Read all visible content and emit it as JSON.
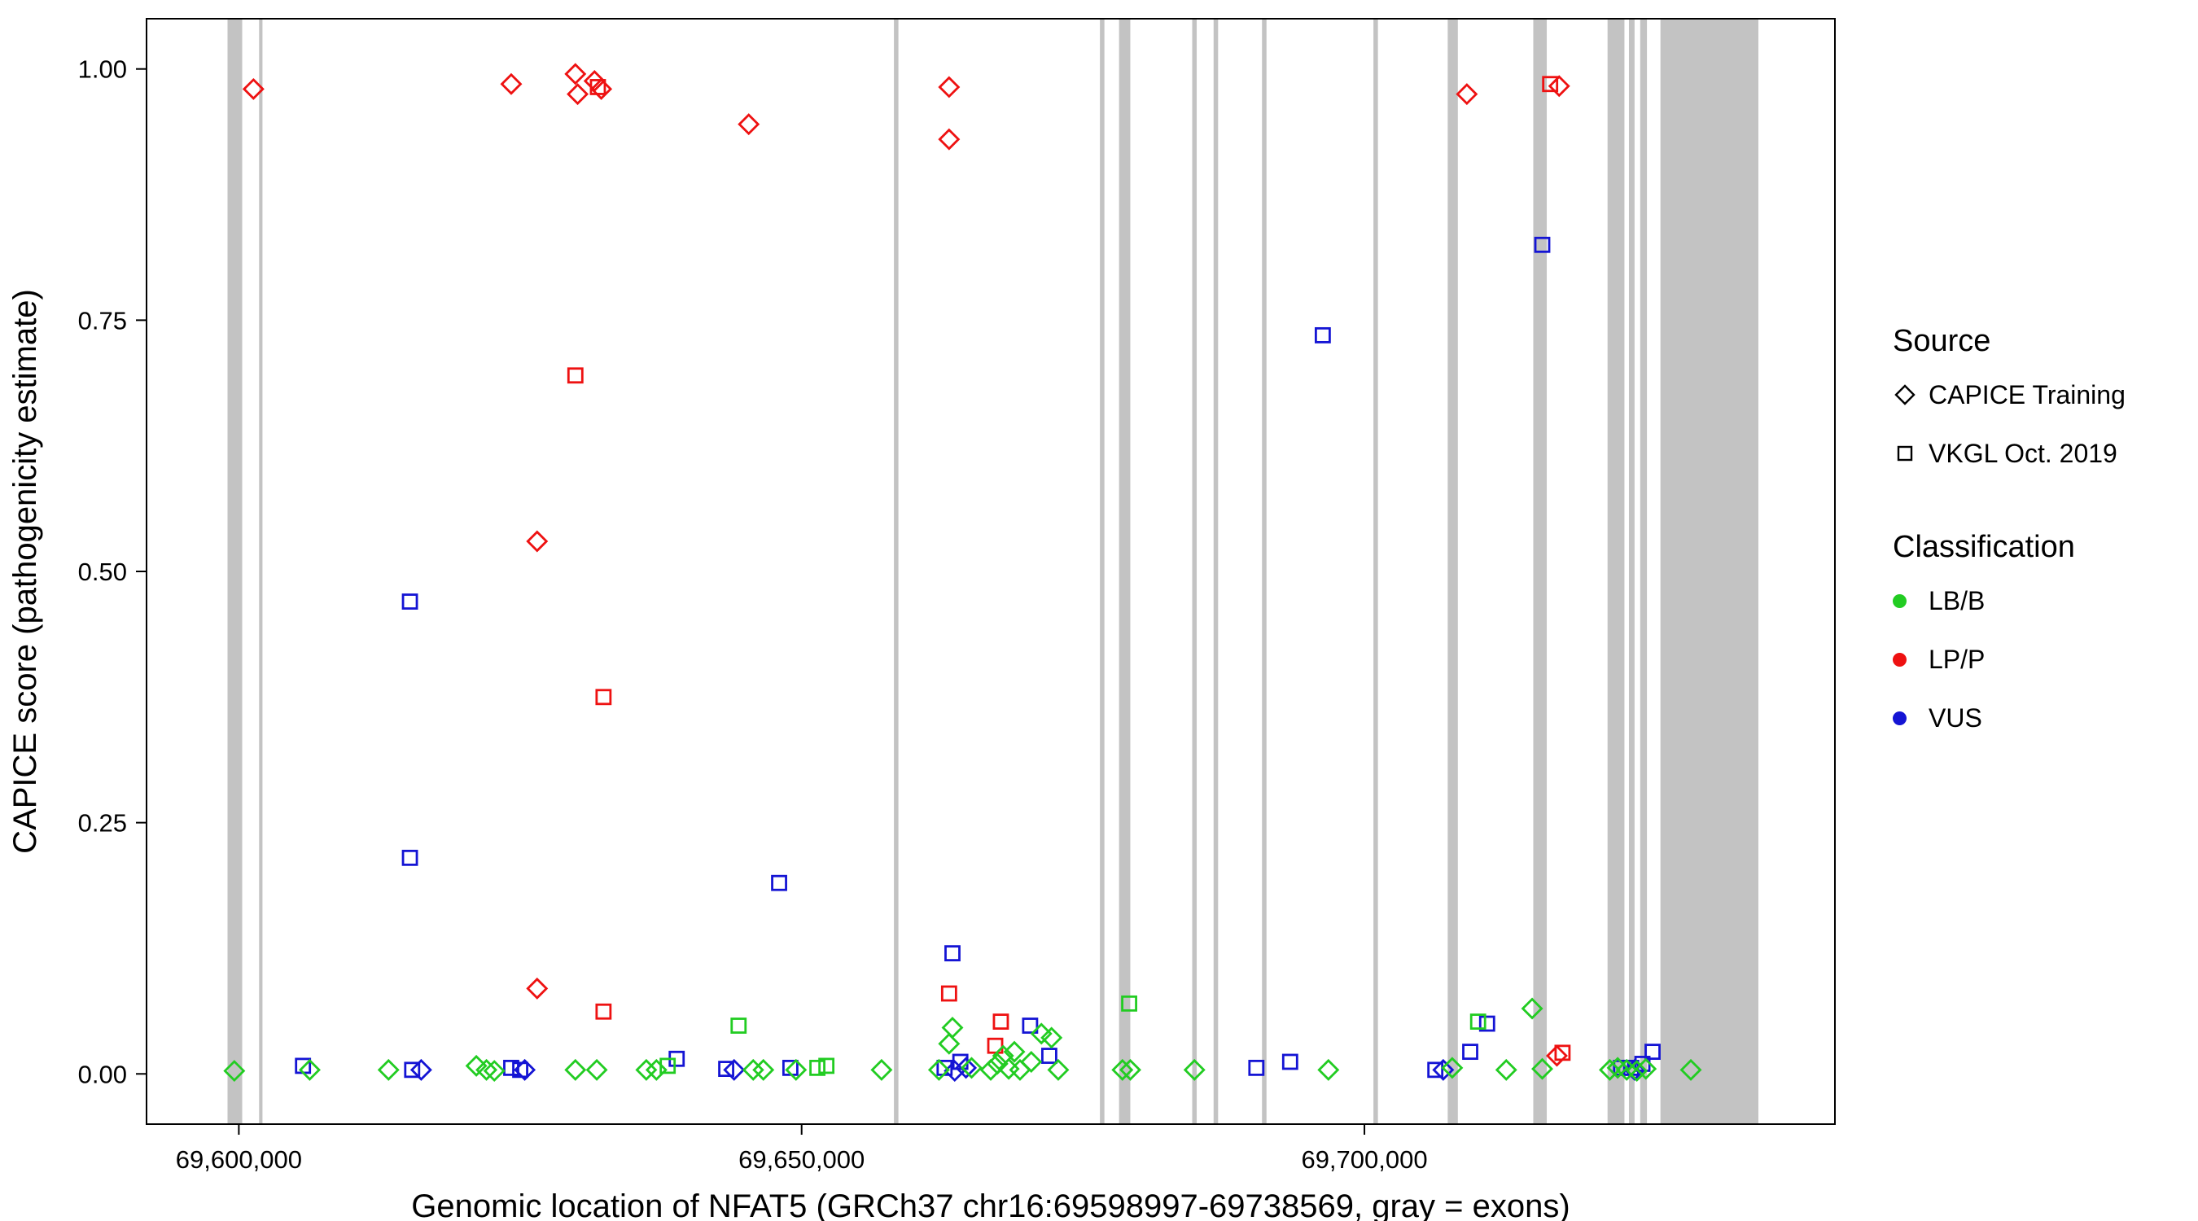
{
  "chart_data": {
    "type": "scatter",
    "title": "",
    "xlabel": "Genomic location of NFAT5 (GRCh37 chr16:69598997-69738569, gray = exons)",
    "ylabel": "CAPICE score (pathogenicity estimate)",
    "xlim": [
      69591800,
      69741800
    ],
    "ylim": [
      -0.05,
      1.05
    ],
    "grid": false,
    "x_ticks": [
      {
        "value": 69600000,
        "label": "69,600,000"
      },
      {
        "value": 69650000,
        "label": "69,650,000"
      },
      {
        "value": 69700000,
        "label": "69,700,000"
      }
    ],
    "y_ticks": [
      {
        "value": 0.0,
        "label": "0.00"
      },
      {
        "value": 0.25,
        "label": "0.25"
      },
      {
        "value": 0.5,
        "label": "0.50"
      },
      {
        "value": 0.75,
        "label": "0.75"
      },
      {
        "value": 1.0,
        "label": "1.00"
      }
    ],
    "exon_color": "#C3C3C3",
    "exons": [
      {
        "start": 69598997,
        "end": 69600300
      },
      {
        "start": 69601800,
        "end": 69602100
      },
      {
        "start": 69658200,
        "end": 69658600
      },
      {
        "start": 69676500,
        "end": 69676900
      },
      {
        "start": 69678200,
        "end": 69679200
      },
      {
        "start": 69684700,
        "end": 69685100
      },
      {
        "start": 69686600,
        "end": 69687000
      },
      {
        "start": 69690900,
        "end": 69691300
      },
      {
        "start": 69700800,
        "end": 69701200
      },
      {
        "start": 69707400,
        "end": 69708300
      },
      {
        "start": 69715000,
        "end": 69716200
      },
      {
        "start": 69721600,
        "end": 69723100
      },
      {
        "start": 69723500,
        "end": 69724000
      },
      {
        "start": 69724500,
        "end": 69725100
      },
      {
        "start": 69726300,
        "end": 69735000
      }
    ],
    "class_colors": {
      "LB/B": "#22CC22",
      "LP/P": "#EE1111",
      "VUS": "#1414D4"
    },
    "shape_by_source": {
      "CAPICE Training": "diamond",
      "VKGL Oct. 2019": "square"
    },
    "points": [
      {
        "x": 69601300,
        "y": 0.98,
        "source": "CAPICE Training",
        "class": "LP/P"
      },
      {
        "x": 69624200,
        "y": 0.985,
        "source": "CAPICE Training",
        "class": "LP/P"
      },
      {
        "x": 69629900,
        "y": 0.995,
        "source": "CAPICE Training",
        "class": "LP/P"
      },
      {
        "x": 69630100,
        "y": 0.975,
        "source": "CAPICE Training",
        "class": "LP/P"
      },
      {
        "x": 69631600,
        "y": 0.988,
        "source": "CAPICE Training",
        "class": "LP/P"
      },
      {
        "x": 69632200,
        "y": 0.98,
        "source": "CAPICE Training",
        "class": "LP/P"
      },
      {
        "x": 69645300,
        "y": 0.945,
        "source": "CAPICE Training",
        "class": "LP/P"
      },
      {
        "x": 69663100,
        "y": 0.982,
        "source": "CAPICE Training",
        "class": "LP/P"
      },
      {
        "x": 69663100,
        "y": 0.93,
        "source": "CAPICE Training",
        "class": "LP/P"
      },
      {
        "x": 69626500,
        "y": 0.53,
        "source": "CAPICE Training",
        "class": "LP/P"
      },
      {
        "x": 69626500,
        "y": 0.085,
        "source": "CAPICE Training",
        "class": "LP/P"
      },
      {
        "x": 69709100,
        "y": 0.975,
        "source": "CAPICE Training",
        "class": "LP/P"
      },
      {
        "x": 69717300,
        "y": 0.983,
        "source": "CAPICE Training",
        "class": "LP/P"
      },
      {
        "x": 69717100,
        "y": 0.018,
        "source": "CAPICE Training",
        "class": "LP/P"
      },
      {
        "x": 69631900,
        "y": 0.982,
        "source": "VKGL Oct. 2019",
        "class": "LP/P"
      },
      {
        "x": 69629900,
        "y": 0.695,
        "source": "VKGL Oct. 2019",
        "class": "LP/P"
      },
      {
        "x": 69632400,
        "y": 0.375,
        "source": "VKGL Oct. 2019",
        "class": "LP/P"
      },
      {
        "x": 69632400,
        "y": 0.062,
        "source": "VKGL Oct. 2019",
        "class": "LP/P"
      },
      {
        "x": 69663100,
        "y": 0.08,
        "source": "VKGL Oct. 2019",
        "class": "LP/P"
      },
      {
        "x": 69667700,
        "y": 0.052,
        "source": "VKGL Oct. 2019",
        "class": "LP/P"
      },
      {
        "x": 69667200,
        "y": 0.028,
        "source": "VKGL Oct. 2019",
        "class": "LP/P"
      },
      {
        "x": 69716500,
        "y": 0.985,
        "source": "VKGL Oct. 2019",
        "class": "LP/P"
      },
      {
        "x": 69717600,
        "y": 0.021,
        "source": "VKGL Oct. 2019",
        "class": "LP/P"
      },
      {
        "x": 69615200,
        "y": 0.47,
        "source": "VKGL Oct. 2019",
        "class": "VUS"
      },
      {
        "x": 69615200,
        "y": 0.215,
        "source": "VKGL Oct. 2019",
        "class": "VUS"
      },
      {
        "x": 69648000,
        "y": 0.19,
        "source": "VKGL Oct. 2019",
        "class": "VUS"
      },
      {
        "x": 69663400,
        "y": 0.12,
        "source": "VKGL Oct. 2019",
        "class": "VUS"
      },
      {
        "x": 69696300,
        "y": 0.735,
        "source": "VKGL Oct. 2019",
        "class": "VUS"
      },
      {
        "x": 69715800,
        "y": 0.825,
        "source": "VKGL Oct. 2019",
        "class": "VUS"
      },
      {
        "x": 69670300,
        "y": 0.048,
        "source": "VKGL Oct. 2019",
        "class": "VUS"
      },
      {
        "x": 69672000,
        "y": 0.018,
        "source": "VKGL Oct. 2019",
        "class": "VUS"
      },
      {
        "x": 69710900,
        "y": 0.05,
        "source": "VKGL Oct. 2019",
        "class": "VUS"
      },
      {
        "x": 69709400,
        "y": 0.022,
        "source": "VKGL Oct. 2019",
        "class": "VUS"
      },
      {
        "x": 69605700,
        "y": 0.008,
        "source": "VKGL Oct. 2019",
        "class": "VUS"
      },
      {
        "x": 69615400,
        "y": 0.004,
        "source": "VKGL Oct. 2019",
        "class": "VUS"
      },
      {
        "x": 69624200,
        "y": 0.006,
        "source": "VKGL Oct. 2019",
        "class": "VUS"
      },
      {
        "x": 69625000,
        "y": 0.004,
        "source": "VKGL Oct. 2019",
        "class": "VUS"
      },
      {
        "x": 69638900,
        "y": 0.015,
        "source": "VKGL Oct. 2019",
        "class": "VUS"
      },
      {
        "x": 69643300,
        "y": 0.005,
        "source": "VKGL Oct. 2019",
        "class": "VUS"
      },
      {
        "x": 69649000,
        "y": 0.006,
        "source": "VKGL Oct. 2019",
        "class": "VUS"
      },
      {
        "x": 69662700,
        "y": 0.006,
        "source": "VKGL Oct. 2019",
        "class": "VUS"
      },
      {
        "x": 69664100,
        "y": 0.012,
        "source": "VKGL Oct. 2019",
        "class": "VUS"
      },
      {
        "x": 69690400,
        "y": 0.006,
        "source": "VKGL Oct. 2019",
        "class": "VUS"
      },
      {
        "x": 69693400,
        "y": 0.012,
        "source": "VKGL Oct. 2019",
        "class": "VUS"
      },
      {
        "x": 69706300,
        "y": 0.004,
        "source": "VKGL Oct. 2019",
        "class": "VUS"
      },
      {
        "x": 69722800,
        "y": 0.006,
        "source": "VKGL Oct. 2019",
        "class": "VUS"
      },
      {
        "x": 69723700,
        "y": 0.006,
        "source": "VKGL Oct. 2019",
        "class": "VUS"
      },
      {
        "x": 69724700,
        "y": 0.01,
        "source": "VKGL Oct. 2019",
        "class": "VUS"
      },
      {
        "x": 69725600,
        "y": 0.022,
        "source": "VKGL Oct. 2019",
        "class": "VUS"
      },
      {
        "x": 69616200,
        "y": 0.004,
        "source": "CAPICE Training",
        "class": "VUS"
      },
      {
        "x": 69625400,
        "y": 0.004,
        "source": "CAPICE Training",
        "class": "VUS"
      },
      {
        "x": 69644000,
        "y": 0.004,
        "source": "CAPICE Training",
        "class": "VUS"
      },
      {
        "x": 69663600,
        "y": 0.003,
        "source": "CAPICE Training",
        "class": "VUS"
      },
      {
        "x": 69664600,
        "y": 0.006,
        "source": "CAPICE Training",
        "class": "VUS"
      },
      {
        "x": 69707000,
        "y": 0.004,
        "source": "CAPICE Training",
        "class": "VUS"
      },
      {
        "x": 69724000,
        "y": 0.004,
        "source": "CAPICE Training",
        "class": "VUS"
      },
      {
        "x": 69644400,
        "y": 0.048,
        "source": "VKGL Oct. 2019",
        "class": "LB/B"
      },
      {
        "x": 69679100,
        "y": 0.07,
        "source": "VKGL Oct. 2019",
        "class": "LB/B"
      },
      {
        "x": 69651400,
        "y": 0.006,
        "source": "VKGL Oct. 2019",
        "class": "LB/B"
      },
      {
        "x": 69652200,
        "y": 0.008,
        "source": "VKGL Oct. 2019",
        "class": "LB/B"
      },
      {
        "x": 69638100,
        "y": 0.008,
        "source": "VKGL Oct. 2019",
        "class": "LB/B"
      },
      {
        "x": 69710100,
        "y": 0.052,
        "source": "VKGL Oct. 2019",
        "class": "LB/B"
      },
      {
        "x": 69599600,
        "y": 0.003,
        "source": "CAPICE Training",
        "class": "LB/B"
      },
      {
        "x": 69606300,
        "y": 0.004,
        "source": "CAPICE Training",
        "class": "LB/B"
      },
      {
        "x": 69613300,
        "y": 0.004,
        "source": "CAPICE Training",
        "class": "LB/B"
      },
      {
        "x": 69621100,
        "y": 0.008,
        "source": "CAPICE Training",
        "class": "LB/B"
      },
      {
        "x": 69622000,
        "y": 0.004,
        "source": "CAPICE Training",
        "class": "LB/B"
      },
      {
        "x": 69622700,
        "y": 0.003,
        "source": "CAPICE Training",
        "class": "LB/B"
      },
      {
        "x": 69629900,
        "y": 0.004,
        "source": "CAPICE Training",
        "class": "LB/B"
      },
      {
        "x": 69631800,
        "y": 0.004,
        "source": "CAPICE Training",
        "class": "LB/B"
      },
      {
        "x": 69636200,
        "y": 0.004,
        "source": "CAPICE Training",
        "class": "LB/B"
      },
      {
        "x": 69637100,
        "y": 0.004,
        "source": "CAPICE Training",
        "class": "LB/B"
      },
      {
        "x": 69645700,
        "y": 0.004,
        "source": "CAPICE Training",
        "class": "LB/B"
      },
      {
        "x": 69646600,
        "y": 0.004,
        "source": "CAPICE Training",
        "class": "LB/B"
      },
      {
        "x": 69649500,
        "y": 0.004,
        "source": "CAPICE Training",
        "class": "LB/B"
      },
      {
        "x": 69657100,
        "y": 0.004,
        "source": "CAPICE Training",
        "class": "LB/B"
      },
      {
        "x": 69662200,
        "y": 0.004,
        "source": "CAPICE Training",
        "class": "LB/B"
      },
      {
        "x": 69663100,
        "y": 0.03,
        "source": "CAPICE Training",
        "class": "LB/B"
      },
      {
        "x": 69663400,
        "y": 0.046,
        "source": "CAPICE Training",
        "class": "LB/B"
      },
      {
        "x": 69665100,
        "y": 0.006,
        "source": "CAPICE Training",
        "class": "LB/B"
      },
      {
        "x": 69666800,
        "y": 0.004,
        "source": "CAPICE Training",
        "class": "LB/B"
      },
      {
        "x": 69667400,
        "y": 0.01,
        "source": "CAPICE Training",
        "class": "LB/B"
      },
      {
        "x": 69667900,
        "y": 0.018,
        "source": "CAPICE Training",
        "class": "LB/B"
      },
      {
        "x": 69668400,
        "y": 0.005,
        "source": "CAPICE Training",
        "class": "LB/B"
      },
      {
        "x": 69668900,
        "y": 0.022,
        "source": "CAPICE Training",
        "class": "LB/B"
      },
      {
        "x": 69669400,
        "y": 0.004,
        "source": "CAPICE Training",
        "class": "LB/B"
      },
      {
        "x": 69670400,
        "y": 0.012,
        "source": "CAPICE Training",
        "class": "LB/B"
      },
      {
        "x": 69671300,
        "y": 0.04,
        "source": "CAPICE Training",
        "class": "LB/B"
      },
      {
        "x": 69672200,
        "y": 0.036,
        "source": "CAPICE Training",
        "class": "LB/B"
      },
      {
        "x": 69672800,
        "y": 0.004,
        "source": "CAPICE Training",
        "class": "LB/B"
      },
      {
        "x": 69678500,
        "y": 0.004,
        "source": "CAPICE Training",
        "class": "LB/B"
      },
      {
        "x": 69679200,
        "y": 0.004,
        "source": "CAPICE Training",
        "class": "LB/B"
      },
      {
        "x": 69684900,
        "y": 0.004,
        "source": "CAPICE Training",
        "class": "LB/B"
      },
      {
        "x": 69696800,
        "y": 0.004,
        "source": "CAPICE Training",
        "class": "LB/B"
      },
      {
        "x": 69707800,
        "y": 0.006,
        "source": "CAPICE Training",
        "class": "LB/B"
      },
      {
        "x": 69712600,
        "y": 0.004,
        "source": "CAPICE Training",
        "class": "LB/B"
      },
      {
        "x": 69714900,
        "y": 0.065,
        "source": "CAPICE Training",
        "class": "LB/B"
      },
      {
        "x": 69715800,
        "y": 0.005,
        "source": "CAPICE Training",
        "class": "LB/B"
      },
      {
        "x": 69721800,
        "y": 0.004,
        "source": "CAPICE Training",
        "class": "LB/B"
      },
      {
        "x": 69722500,
        "y": 0.006,
        "source": "CAPICE Training",
        "class": "LB/B"
      },
      {
        "x": 69723300,
        "y": 0.004,
        "source": "CAPICE Training",
        "class": "LB/B"
      },
      {
        "x": 69724200,
        "y": 0.003,
        "source": "CAPICE Training",
        "class": "LB/B"
      },
      {
        "x": 69725000,
        "y": 0.005,
        "source": "CAPICE Training",
        "class": "LB/B"
      },
      {
        "x": 69729000,
        "y": 0.004,
        "source": "CAPICE Training",
        "class": "LB/B"
      }
    ]
  },
  "legend": {
    "source": {
      "title": "Source",
      "items": [
        {
          "label": "CAPICE Training",
          "shape": "diamond"
        },
        {
          "label": "VKGL Oct. 2019",
          "shape": "square"
        }
      ]
    },
    "classification": {
      "title": "Classification",
      "items": [
        {
          "label": "LB/B",
          "color": "#22CC22"
        },
        {
          "label": "LP/P",
          "color": "#EE1111"
        },
        {
          "label": "VUS",
          "color": "#1414D4"
        }
      ]
    }
  }
}
